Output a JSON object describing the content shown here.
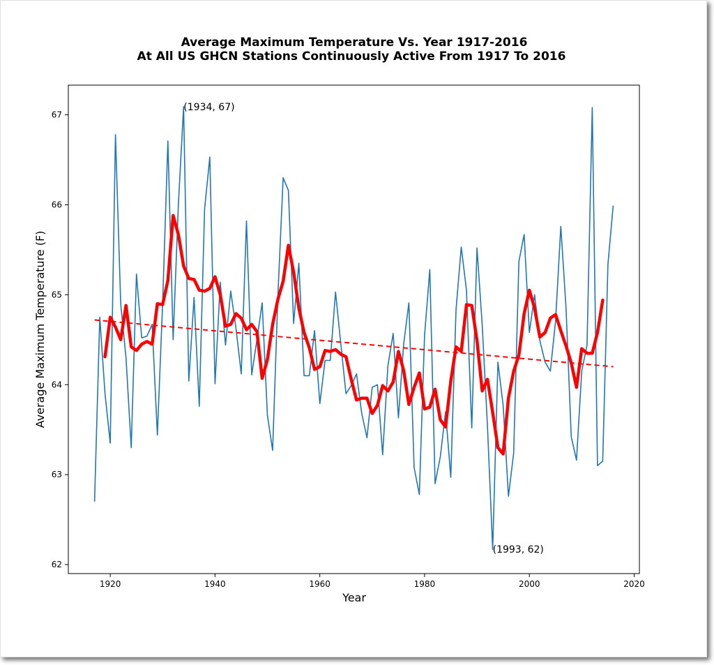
{
  "chart_data": {
    "type": "line",
    "title": "Average Maximum Temperature Vs. Year 1917-2016",
    "subtitle": "At All US GHCN Stations Continuously Active From 1917 To 2016",
    "xlabel": "Year",
    "ylabel": "Average Maximum Temperature (F)",
    "xlim": [
      1912,
      2021
    ],
    "ylim": [
      61.9,
      67.33
    ],
    "xticks": [
      1920,
      1940,
      1960,
      1980,
      2000,
      2020
    ],
    "yticks": [
      62,
      63,
      64,
      65,
      66,
      67
    ],
    "grid": false,
    "series": [
      {
        "kind": "annual",
        "color": "#1f77b4",
        "x": [
          1917,
          1918,
          1919,
          1920,
          1921,
          1922,
          1923,
          1924,
          1925,
          1926,
          1927,
          1928,
          1929,
          1930,
          1931,
          1932,
          1933,
          1934,
          1935,
          1936,
          1937,
          1938,
          1939,
          1940,
          1941,
          1942,
          1943,
          1944,
          1945,
          1946,
          1947,
          1948,
          1949,
          1950,
          1951,
          1952,
          1953,
          1954,
          1955,
          1956,
          1957,
          1958,
          1959,
          1960,
          1961,
          1962,
          1963,
          1964,
          1965,
          1966,
          1967,
          1968,
          1969,
          1970,
          1971,
          1972,
          1973,
          1974,
          1975,
          1976,
          1977,
          1978,
          1979,
          1980,
          1981,
          1982,
          1983,
          1984,
          1985,
          1986,
          1987,
          1988,
          1989,
          1990,
          1991,
          1992,
          1993,
          1994,
          1995,
          1996,
          1997,
          1998,
          1999,
          2000,
          2001,
          2002,
          2003,
          2004,
          2005,
          2006,
          2007,
          2008,
          2009,
          2010,
          2011,
          2012,
          2013,
          2014,
          2015,
          2016
        ],
        "values": [
          62.7,
          64.75,
          63.9,
          63.35,
          66.78,
          64.9,
          64.3,
          63.3,
          65.23,
          64.52,
          64.54,
          64.67,
          63.44,
          64.9,
          66.71,
          64.5,
          66.0,
          67.09,
          64.04,
          64.97,
          63.76,
          65.95,
          66.53,
          64.01,
          65.14,
          64.44,
          65.04,
          64.63,
          64.12,
          65.82,
          64.11,
          64.5,
          64.91,
          63.66,
          63.27,
          65.0,
          66.3,
          66.16,
          64.68,
          65.35,
          64.1,
          64.1,
          64.6,
          63.79,
          64.27,
          64.27,
          65.03,
          64.46,
          63.9,
          63.99,
          64.12,
          63.68,
          63.41,
          63.97,
          64.0,
          63.22,
          64.21,
          64.57,
          63.63,
          64.45,
          64.91,
          63.08,
          62.78,
          64.55,
          65.28,
          62.9,
          63.2,
          63.7,
          62.97,
          64.83,
          65.53,
          65.05,
          63.52,
          65.52,
          64.66,
          63.54,
          62.17,
          64.25,
          63.77,
          62.76,
          63.24,
          65.37,
          65.67,
          64.58,
          65.0,
          64.49,
          64.25,
          64.15,
          64.71,
          65.76,
          64.85,
          63.42,
          63.16,
          64.15,
          64.44,
          67.08,
          63.1,
          63.15,
          65.34,
          65.99
        ]
      },
      {
        "kind": "smoothed",
        "color": "#ff0000",
        "x": [
          1919,
          1920,
          1921,
          1922,
          1923,
          1924,
          1925,
          1926,
          1927,
          1928,
          1929,
          1930,
          1931,
          1932,
          1933,
          1934,
          1935,
          1936,
          1937,
          1938,
          1939,
          1940,
          1941,
          1942,
          1943,
          1944,
          1945,
          1946,
          1947,
          1948,
          1949,
          1950,
          1951,
          1952,
          1953,
          1954,
          1955,
          1956,
          1957,
          1958,
          1959,
          1960,
          1961,
          1962,
          1963,
          1964,
          1965,
          1966,
          1967,
          1968,
          1969,
          1970,
          1971,
          1972,
          1973,
          1974,
          1975,
          1976,
          1977,
          1978,
          1979,
          1980,
          1981,
          1982,
          1983,
          1984,
          1985,
          1986,
          1987,
          1988,
          1989,
          1990,
          1991,
          1992,
          1993,
          1994,
          1995,
          1996,
          1997,
          1998,
          1999,
          2000,
          2001,
          2002,
          2003,
          2004,
          2005,
          2006,
          2007,
          2008,
          2009,
          2010,
          2011,
          2012,
          2013,
          2014
        ],
        "values": [
          64.31,
          64.75,
          64.64,
          64.5,
          64.88,
          64.42,
          64.38,
          64.45,
          64.48,
          64.45,
          64.9,
          64.89,
          65.16,
          65.88,
          65.67,
          65.32,
          65.18,
          65.17,
          65.05,
          65.04,
          65.07,
          65.2,
          65.0,
          64.65,
          64.67,
          64.79,
          64.74,
          64.61,
          64.67,
          64.59,
          64.07,
          64.28,
          64.67,
          64.95,
          65.15,
          65.55,
          65.25,
          64.85,
          64.58,
          64.41,
          64.17,
          64.2,
          64.38,
          64.37,
          64.39,
          64.34,
          64.31,
          64.06,
          63.83,
          63.85,
          63.85,
          63.68,
          63.77,
          63.99,
          63.93,
          64.03,
          64.37,
          64.16,
          63.78,
          63.97,
          64.13,
          63.73,
          63.75,
          63.95,
          63.61,
          63.53,
          64.04,
          64.42,
          64.37,
          64.89,
          64.88,
          64.49,
          63.93,
          64.06,
          63.69,
          63.3,
          63.23,
          63.85,
          64.15,
          64.33,
          64.79,
          65.05,
          64.85,
          64.53,
          64.58,
          64.74,
          64.78,
          64.6,
          64.43,
          64.24,
          63.97,
          64.4,
          64.35,
          64.35,
          64.58,
          64.94
        ]
      },
      {
        "kind": "trend",
        "color": "#ff0000",
        "x": [
          1917,
          2016
        ],
        "values": [
          64.72,
          64.2
        ]
      }
    ],
    "annotations": [
      {
        "text": "(1934, 67)",
        "x": 1934,
        "y": 67
      },
      {
        "text": "(1993, 62)",
        "x": 1993,
        "y": 62
      }
    ]
  }
}
